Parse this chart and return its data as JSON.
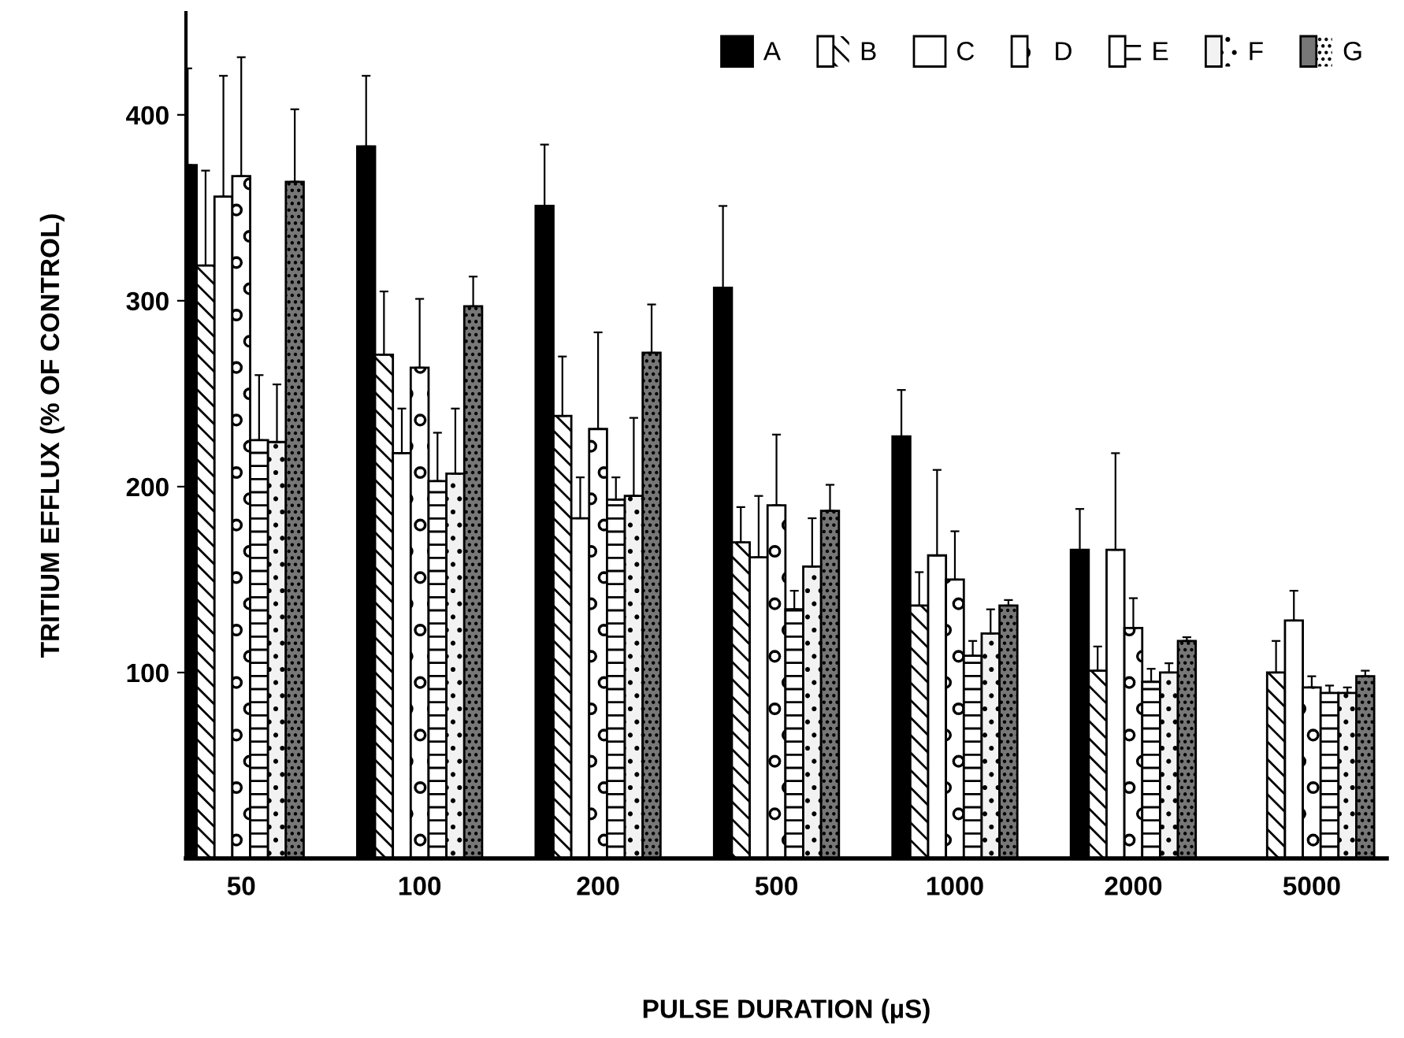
{
  "chart_data": {
    "type": "bar",
    "xlabel": "PULSE DURATION (µS)",
    "ylabel": "TRITIUM EFFLUX (% OF CONTROL)",
    "categories": [
      "50",
      "100",
      "200",
      "500",
      "1000",
      "2000",
      "5000"
    ],
    "ylim": [
      0,
      455
    ],
    "yticks": [
      100,
      200,
      300,
      400
    ],
    "grid": false,
    "legend": "top right",
    "series": [
      {
        "name": "A",
        "color": "#000000",
        "values": [
          373,
          383,
          351,
          307,
          227,
          166,
          null
        ],
        "errors": [
          [
            373,
            425
          ],
          [
            383,
            421
          ],
          [
            351,
            384
          ],
          [
            307,
            351
          ],
          [
            227,
            252
          ],
          [
            166,
            188
          ],
          null
        ]
      },
      {
        "name": "B",
        "color": "#ffffff",
        "values": [
          319,
          271,
          238,
          170,
          136,
          101,
          100
        ],
        "errors": [
          [
            319,
            370
          ],
          [
            271,
            305
          ],
          [
            238,
            270
          ],
          [
            170,
            189
          ],
          [
            136,
            154
          ],
          [
            101,
            114
          ],
          [
            100,
            117
          ]
        ]
      },
      {
        "name": "C",
        "color": "#ffffff",
        "values": [
          356,
          218,
          183,
          162,
          163,
          166,
          128
        ],
        "errors": [
          [
            356,
            421
          ],
          [
            218,
            242
          ],
          [
            183,
            205
          ],
          [
            162,
            195
          ],
          [
            163,
            209
          ],
          [
            166,
            218
          ],
          [
            128,
            144
          ]
        ]
      },
      {
        "name": "D",
        "color": "#ffffff",
        "values": [
          367,
          264,
          231,
          190,
          150,
          124,
          92
        ],
        "errors": [
          [
            367,
            431
          ],
          [
            264,
            301
          ],
          [
            231,
            283
          ],
          [
            190,
            228
          ],
          [
            150,
            176
          ],
          [
            124,
            140
          ],
          [
            92,
            98
          ]
        ]
      },
      {
        "name": "E",
        "color": "#ffffff",
        "values": [
          225,
          203,
          193,
          134,
          109,
          95,
          89
        ],
        "errors": [
          [
            225,
            260
          ],
          [
            203,
            229
          ],
          [
            193,
            205
          ],
          [
            134,
            144
          ],
          [
            109,
            117
          ],
          [
            95,
            102
          ],
          [
            89,
            93
          ]
        ]
      },
      {
        "name": "F",
        "color": "#f2f2f2",
        "values": [
          224,
          207,
          195,
          157,
          121,
          100,
          89
        ],
        "errors": [
          [
            224,
            255
          ],
          [
            207,
            242
          ],
          [
            195,
            237
          ],
          [
            157,
            183
          ],
          [
            121,
            134
          ],
          [
            100,
            105
          ],
          [
            89,
            92
          ]
        ]
      },
      {
        "name": "G",
        "color": "#777777",
        "values": [
          364,
          297,
          272,
          187,
          136,
          117,
          98
        ],
        "errors": [
          [
            364,
            403
          ],
          [
            297,
            313
          ],
          [
            272,
            298
          ],
          [
            187,
            201
          ],
          [
            136,
            139
          ],
          [
            117,
            119
          ],
          [
            98,
            101
          ]
        ]
      }
    ]
  }
}
